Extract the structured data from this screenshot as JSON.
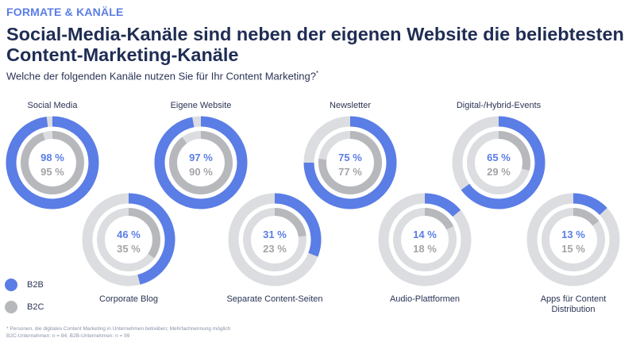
{
  "header": {
    "kicker": "FORMATE & KANÄLE",
    "title": "Social-Media-Kanäle sind neben der eigenen Website die beliebtesten Content-Marketing-Kanäle",
    "subtitle": "Welche der folgenden Kanäle nutzen Sie für Ihr Content Marketing?",
    "subtitle_mark": "*"
  },
  "colors": {
    "b2b": "#5a7de6",
    "b2c": "#b7b8bc",
    "track": "#dcdde0",
    "b2b_text": "#5a7de6",
    "b2c_text": "#a3a4a8"
  },
  "legend": [
    {
      "label": "B2B",
      "color": "#5a7de6"
    },
    {
      "label": "B2C",
      "color": "#b7b8bc"
    }
  ],
  "chart_data": {
    "type": "donut",
    "series_names": [
      "B2B",
      "B2C"
    ],
    "categories": [
      {
        "label": "Social Media",
        "b2b": 98,
        "b2c": 95,
        "b2b_text": "98 %",
        "b2c_text": "95 %",
        "label_position": "above"
      },
      {
        "label": "Corporate Blog",
        "b2b": 46,
        "b2c": 35,
        "b2b_text": "46 %",
        "b2c_text": "35 %",
        "label_position": "below"
      },
      {
        "label": "Eigene Website",
        "b2b": 97,
        "b2c": 90,
        "b2b_text": "97 %",
        "b2c_text": "90 %",
        "label_position": "above"
      },
      {
        "label": "Separate Content-Seiten",
        "b2b": 31,
        "b2c": 23,
        "b2b_text": "31 %",
        "b2c_text": "23 %",
        "label_position": "below"
      },
      {
        "label": "Newsletter",
        "b2b": 75,
        "b2c": 77,
        "b2b_text": "75 %",
        "b2c_text": "77 %",
        "label_position": "above"
      },
      {
        "label": "Audio-Plattformen",
        "b2b": 14,
        "b2c": 18,
        "b2b_text": "14 %",
        "b2c_text": "18 %",
        "label_position": "below"
      },
      {
        "label": "Digital-/Hybrid-Events",
        "b2b": 65,
        "b2c": 29,
        "b2b_text": "65 %",
        "b2c_text": "29 %",
        "label_position": "above"
      },
      {
        "label": [
          "Apps für Content",
          "Distribution"
        ],
        "b2b": 13,
        "b2c": 15,
        "b2b_text": "13 %",
        "b2c_text": "15 %",
        "label_position": "below"
      }
    ]
  },
  "footnote": {
    "line1": "* Personen, die digitales Content Marketing in Unternehmen betreiben; Mehrfachnennung möglich",
    "line2": "B2C-Unternehmen: n = 84; B2B-Unternehmen: n = 99"
  }
}
